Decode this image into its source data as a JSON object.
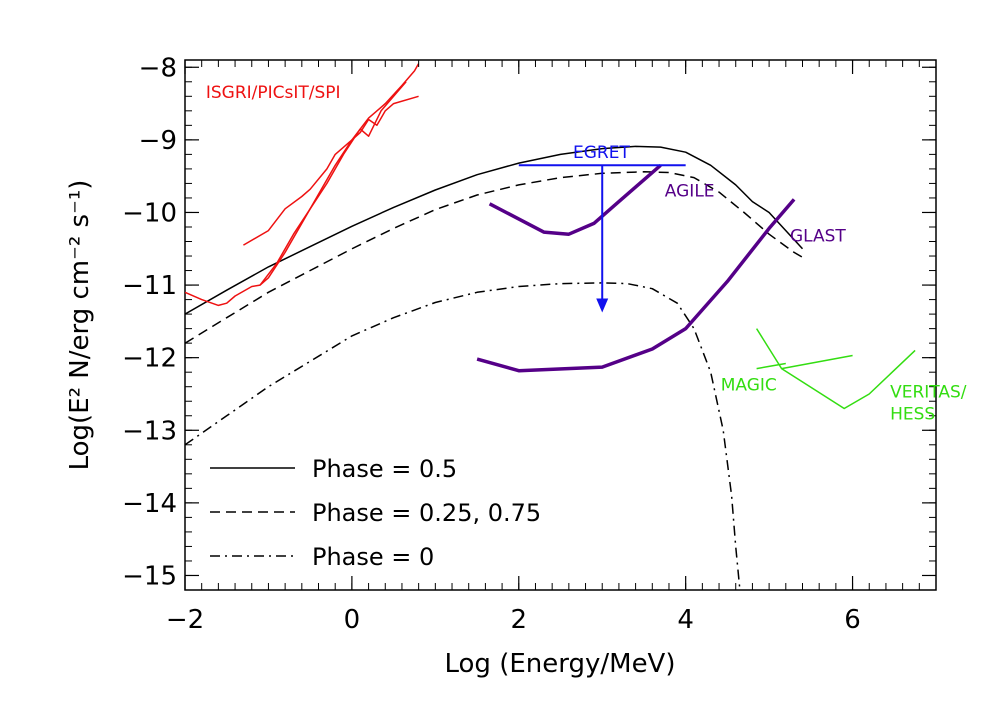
{
  "chart_data": {
    "type": "line",
    "xlabel": "Log (Energy/MeV)",
    "ylabel": "Log(E² N/erg cm⁻² s⁻¹)",
    "xlim": [
      -2,
      7
    ],
    "ylim": [
      -15.2,
      -7.9
    ],
    "xticks": [
      -2,
      0,
      2,
      4,
      6
    ],
    "xtick_labels": [
      "−2",
      "0",
      "2",
      "4",
      "6"
    ],
    "yticks": [
      -15,
      -14,
      -13,
      -12,
      -11,
      -10,
      -9,
      -8
    ],
    "ytick_labels": [
      "−15",
      "−14",
      "−13",
      "−12",
      "−11",
      "−10",
      "−9",
      "−8"
    ],
    "legend_position": "bottom-left",
    "legend": [
      {
        "label": "Phase = 0.5",
        "dash": "solid"
      },
      {
        "label": "Phase = 0.25, 0.75",
        "dash": "dashed"
      },
      {
        "label": "Phase = 0",
        "dash": "dashdot"
      }
    ],
    "series": [
      {
        "name": "Phase = 0.5",
        "color": "#000000",
        "dash": "solid",
        "x": [
          -2,
          -1.5,
          -1,
          -0.5,
          0,
          0.5,
          1,
          1.5,
          2,
          2.5,
          3,
          3.4,
          3.7,
          4.0,
          4.3,
          4.6,
          4.8,
          5.0,
          5.2,
          5.4
        ],
        "y": [
          -11.4,
          -11.07,
          -10.75,
          -10.47,
          -10.19,
          -9.93,
          -9.69,
          -9.48,
          -9.32,
          -9.2,
          -9.12,
          -9.09,
          -9.1,
          -9.17,
          -9.35,
          -9.62,
          -9.85,
          -10.0,
          -10.25,
          -10.5
        ]
      },
      {
        "name": "Phase = 0.25, 0.75",
        "color": "#000000",
        "dash": "dashed",
        "x": [
          -2,
          -1.5,
          -1,
          -0.5,
          0,
          0.5,
          1,
          1.5,
          2,
          2.5,
          3,
          3.5,
          3.8,
          4.1,
          4.4,
          4.7,
          5.0,
          5.3,
          5.45
        ],
        "y": [
          -11.8,
          -11.45,
          -11.1,
          -10.8,
          -10.5,
          -10.22,
          -9.96,
          -9.76,
          -9.62,
          -9.52,
          -9.46,
          -9.44,
          -9.45,
          -9.52,
          -9.72,
          -10.0,
          -10.3,
          -10.55,
          -10.65
        ]
      },
      {
        "name": "Phase = 0",
        "color": "#000000",
        "dash": "dashdot",
        "x": [
          -2,
          -1.5,
          -1,
          -0.5,
          0,
          0.5,
          1,
          1.5,
          2,
          2.5,
          3,
          3.3,
          3.6,
          3.9,
          4.1,
          4.3,
          4.45,
          4.55,
          4.6,
          4.65
        ],
        "y": [
          -13.2,
          -12.8,
          -12.4,
          -12.05,
          -11.7,
          -11.45,
          -11.24,
          -11.1,
          -11.02,
          -10.98,
          -10.97,
          -10.98,
          -11.05,
          -11.25,
          -11.6,
          -12.2,
          -13.0,
          -13.9,
          -14.6,
          -15.2
        ]
      },
      {
        "name": "ISGRI/PICsIT/SPI",
        "color": "#ee1111",
        "dash": "solid",
        "width": 1.5,
        "x": [
          -2,
          -1.8,
          -1.6,
          -1.5,
          -1.4,
          -1.2,
          -1.1,
          -1.0,
          -0.8,
          -0.6,
          -0.4,
          -0.2,
          0,
          0.2,
          0.4,
          0.6,
          0.75,
          0.8
        ],
        "y": [
          -11.1,
          -11.2,
          -11.28,
          -11.25,
          -11.15,
          -11.02,
          -11.0,
          -10.9,
          -10.55,
          -10.15,
          -9.75,
          -9.35,
          -9.0,
          -8.7,
          -8.5,
          -8.25,
          -8.05,
          -7.95
        ]
      },
      {
        "name": "ISGRI/PICsIT/SPI",
        "color": "#ee1111",
        "dash": "solid",
        "width": 1.5,
        "x": [
          -1.3,
          -1.0,
          -0.8,
          -0.6,
          -0.5,
          -0.3,
          -0.2,
          0,
          0.1,
          0.2,
          0.3,
          0.4,
          0.5,
          0.8
        ],
        "y": [
          -10.45,
          -10.25,
          -9.95,
          -9.78,
          -9.68,
          -9.4,
          -9.2,
          -9.0,
          -8.9,
          -8.72,
          -8.8,
          -8.6,
          -8.5,
          -8.4
        ]
      },
      {
        "name": "ISGRI/PICsIT/SPI",
        "color": "#ee1111",
        "dash": "solid",
        "width": 1.5,
        "x": [
          -1.1,
          -0.9,
          -0.7,
          -0.5,
          -0.3,
          -0.1,
          0.1,
          0.2,
          0.35,
          0.5,
          0.65
        ],
        "y": [
          -11.0,
          -10.7,
          -10.3,
          -9.95,
          -9.6,
          -9.2,
          -8.85,
          -8.95,
          -8.6,
          -8.4,
          -8.2
        ]
      },
      {
        "name": "AGILE",
        "color": "#550088",
        "dash": "solid",
        "width": 3.5,
        "x": [
          1.65,
          2.3,
          2.6,
          2.9,
          3.2,
          3.7
        ],
        "y": [
          -9.88,
          -10.27,
          -10.3,
          -10.15,
          -9.85,
          -9.35
        ]
      },
      {
        "name": "GLAST",
        "color": "#550088",
        "dash": "solid",
        "width": 3.5,
        "x": [
          1.5,
          2.0,
          3.0,
          3.6,
          4.0,
          4.5,
          5.0,
          5.3
        ],
        "y": [
          -12.02,
          -12.18,
          -12.13,
          -11.88,
          -11.6,
          -10.95,
          -10.22,
          -9.82
        ]
      },
      {
        "name": "MAGIC",
        "color": "#33dd11",
        "dash": "solid",
        "width": 1.5,
        "x": [
          4.85,
          5.15,
          6.0
        ],
        "y": [
          -11.6,
          -12.15,
          -11.97
        ]
      },
      {
        "name": "MAGIC",
        "color": "#33dd11",
        "dash": "solid",
        "width": 1.5,
        "x": [
          4.85,
          5.0,
          5.2
        ],
        "y": [
          -12.15,
          -12.12,
          -12.08
        ]
      },
      {
        "name": "VERITAS/HESS",
        "color": "#33dd11",
        "dash": "solid",
        "width": 1.5,
        "x": [
          5.15,
          5.9,
          6.2,
          6.75
        ],
        "y": [
          -12.15,
          -12.7,
          -12.5,
          -11.9
        ]
      }
    ],
    "egret": {
      "name": "EGRET",
      "color": "#1111ee",
      "x0": 2.0,
      "x1": 4.0,
      "y": -9.35,
      "arrow_x": 3.0,
      "arrow_to": -11.35
    },
    "annotations": [
      {
        "text": "ISGRI/PICsIT/SPI",
        "color": "#ee1111",
        "x": -1.75,
        "y": -8.42
      },
      {
        "text": "EGRET",
        "color": "#1111ee",
        "x": 2.65,
        "y": -9.25
      },
      {
        "text": "AGILE",
        "color": "#550088",
        "x": 3.75,
        "y": -9.78
      },
      {
        "text": "GLAST",
        "color": "#550088",
        "x": 5.25,
        "y": -10.4
      },
      {
        "text": "MAGIC",
        "color": "#33dd11",
        "x": 4.42,
        "y": -12.45
      },
      {
        "text": "VERITAS/",
        "color": "#33dd11",
        "x": 6.45,
        "y": -12.55
      },
      {
        "text": "HESS",
        "color": "#33dd11",
        "x": 6.45,
        "y": -12.85
      }
    ]
  }
}
